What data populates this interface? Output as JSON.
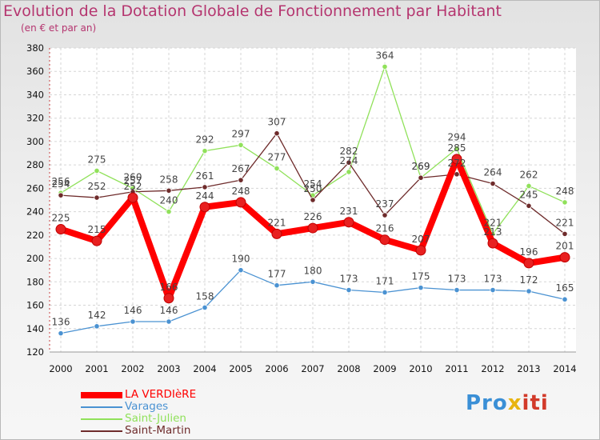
{
  "title": "Evolution de la Dotation Globale de Fonctionnement par Habitant",
  "subtitle": "(en € et par an)",
  "brand": {
    "text": "Proxiti",
    "part1": "Pro",
    "part2": "x",
    "part3": "iti"
  },
  "colors": {
    "title": "#b5356f",
    "la_verdiere": "#ff0000",
    "varages": "#4a92d2",
    "saint_julien": "#90e15a",
    "saint_martin": "#6e2b2b"
  },
  "chart_data": {
    "type": "line",
    "title": "Evolution de la Dotation Globale de Fonctionnement par Habitant",
    "subtitle": "(en € et par an)",
    "xlabel": "",
    "ylabel": "",
    "x": [
      "2000",
      "2001",
      "2002",
      "2003",
      "2004",
      "2005",
      "2006",
      "2007",
      "2008",
      "2009",
      "2010",
      "2011",
      "2012",
      "2013",
      "2014"
    ],
    "ylim": [
      120,
      380
    ],
    "yticks": [
      120,
      140,
      160,
      180,
      200,
      220,
      240,
      260,
      280,
      300,
      320,
      340,
      360,
      380
    ],
    "grid": true,
    "legend_position": "bottom-left",
    "series": [
      {
        "name": "LA VERDIèRE",
        "color": "#ff0000",
        "width": "thick",
        "values": [
          225,
          215,
          252,
          166,
          244,
          248,
          221,
          226,
          231,
          216,
          207,
          285,
          213,
          196,
          201
        ],
        "labels": [
          "225",
          "215",
          "252",
          "166",
          "244",
          "248",
          "221",
          "226",
          "231",
          "216",
          "207",
          "285",
          "213",
          "196",
          "201"
        ]
      },
      {
        "name": "Varages",
        "color": "#4a92d2",
        "width": "thin",
        "values": [
          136,
          142,
          146,
          146,
          158,
          190,
          177,
          180,
          173,
          171,
          175,
          173,
          173,
          172,
          165
        ],
        "labels": [
          "136",
          "142",
          "146",
          "146",
          "158",
          "190",
          "177",
          "180",
          "173",
          "171",
          "175",
          "173",
          "173",
          "172",
          "165"
        ]
      },
      {
        "name": "Saint-Julien",
        "color": "#90e15a",
        "width": "thin",
        "values": [
          256,
          275,
          260,
          240,
          292,
          297,
          277,
          254,
          274,
          364,
          269,
          294,
          221,
          262,
          248
        ],
        "labels": [
          "256",
          "275",
          "260",
          "240",
          "292",
          "297",
          "277",
          "254",
          "274",
          "364",
          "269",
          "294",
          "221",
          "262",
          "248"
        ]
      },
      {
        "name": "Saint-Martin",
        "color": "#6e2b2b",
        "width": "thin",
        "values": [
          254,
          252,
          257,
          258,
          261,
          267,
          307,
          250,
          282,
          237,
          269,
          272,
          264,
          245,
          221
        ],
        "labels": [
          "254",
          "252",
          "257",
          "258",
          "261",
          "267",
          "307",
          "250",
          "282",
          "237",
          "269",
          "272",
          "264",
          "245",
          "221"
        ]
      }
    ]
  }
}
